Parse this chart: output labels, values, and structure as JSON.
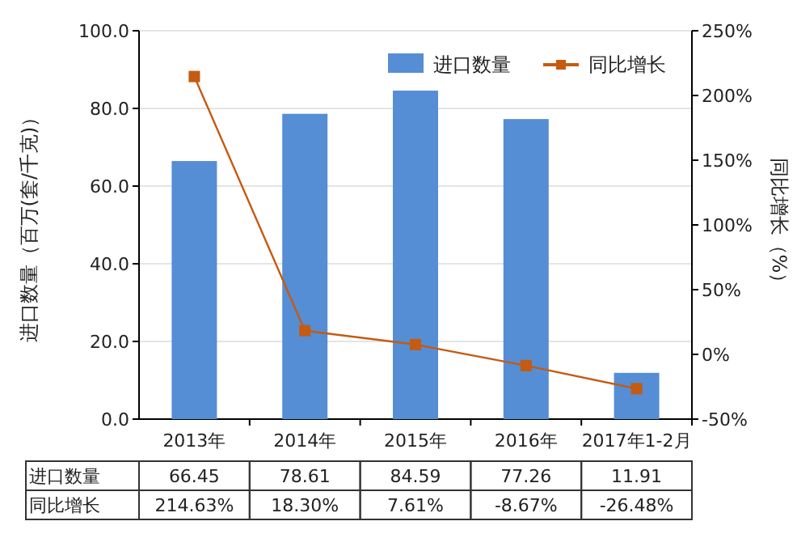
{
  "chart_data": {
    "type": "bar",
    "categories": [
      "2013年",
      "2014年",
      "2015年",
      "2016年",
      "2017年1-2月"
    ],
    "series": [
      {
        "name": "进口数量",
        "color": "#558ed5",
        "values": [
          66.45,
          78.61,
          84.59,
          77.26,
          11.91
        ],
        "value_labels": [
          "66.45",
          "78.61",
          "84.59",
          "77.26",
          "11.91"
        ]
      },
      {
        "name": "同比增长",
        "type": "line",
        "axis": "y2",
        "color": "#c55a11",
        "values": [
          214.63,
          18.3,
          7.61,
          -8.67,
          -26.48
        ],
        "value_labels": [
          "214.63%",
          "18.30%",
          "7.61%",
          "-8.67%",
          "-26.48%"
        ]
      }
    ],
    "ylabel": "进口数量（百万(套/千克)）",
    "y2label": "同比增长（%）",
    "ylim": [
      0,
      100
    ],
    "yticks": [
      {
        "value": 0,
        "label": "0.0"
      },
      {
        "value": 20,
        "label": "20.0"
      },
      {
        "value": 40,
        "label": "40.0"
      },
      {
        "value": 60,
        "label": "60.0"
      },
      {
        "value": 80,
        "label": "80.0"
      },
      {
        "value": 100,
        "label": "100.0"
      }
    ],
    "y2lim": [
      -50,
      250
    ],
    "y2ticks": [
      {
        "value": -50,
        "label": "-50%"
      },
      {
        "value": 0,
        "label": "0%"
      },
      {
        "value": 50,
        "label": "50%"
      },
      {
        "value": 100,
        "label": "100%"
      },
      {
        "value": 150,
        "label": "150%"
      },
      {
        "value": 200,
        "label": "200%"
      },
      {
        "value": 250,
        "label": "250%"
      }
    ],
    "grid": "y",
    "legend": "top right",
    "marker": "square"
  }
}
